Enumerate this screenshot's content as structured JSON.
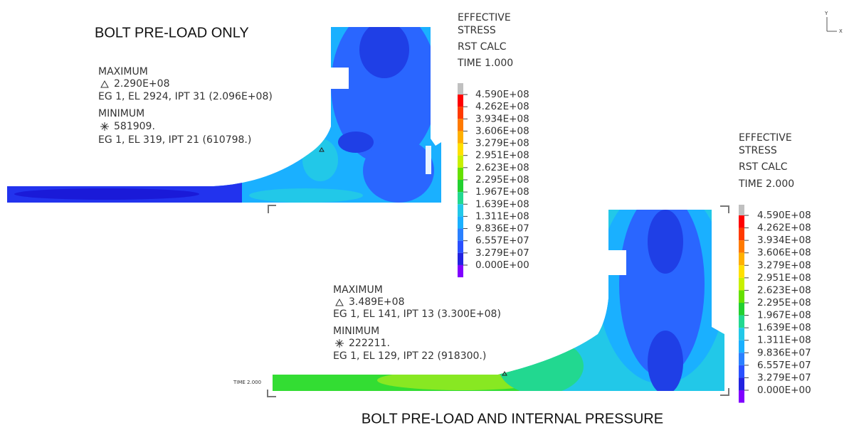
{
  "axis_triad": {
    "y": "Y",
    "x": "X"
  },
  "panels": [
    {
      "title": "BOLT PRE-LOAD ONLY",
      "result": [
        "EFFECTIVE",
        "STRESS",
        "RST CALC",
        "TIME 1.000"
      ],
      "maximum": {
        "label": "MAXIMUM",
        "value": "2.290E+08",
        "location": "EG 1, EL 2924, IPT 31 (2.096E+08)"
      },
      "minimum": {
        "label": "MINIMUM",
        "value": "581909.",
        "location": "EG 1, EL 319, IPT 21 (610798.)"
      },
      "legend": [
        "4.590E+08",
        "4.262E+08",
        "3.934E+08",
        "3.606E+08",
        "3.279E+08",
        "2.951E+08",
        "2.623E+08",
        "2.295E+08",
        "1.967E+08",
        "1.639E+08",
        "1.311E+08",
        "9.836E+07",
        "6.557E+07",
        "3.279E+07",
        "0.000E+00"
      ]
    },
    {
      "title": "BOLT PRE-LOAD AND INTERNAL PRESSURE",
      "time_label": "TIME 2.000",
      "result": [
        "EFFECTIVE",
        "STRESS",
        "RST CALC",
        "TIME 2.000"
      ],
      "maximum": {
        "label": "MAXIMUM",
        "value": "3.489E+08",
        "location": "EG 1, EL 141, IPT 13 (3.300E+08)"
      },
      "minimum": {
        "label": "MINIMUM",
        "value": "222211.",
        "location": "EG 1, EL 129, IPT 22 (918300.)"
      },
      "legend": [
        "4.590E+08",
        "4.262E+08",
        "3.934E+08",
        "3.606E+08",
        "3.279E+08",
        "2.951E+08",
        "2.623E+08",
        "2.295E+08",
        "1.967E+08",
        "1.639E+08",
        "1.311E+08",
        "9.836E+07",
        "6.557E+07",
        "3.279E+07",
        "0.000E+00"
      ]
    }
  ]
}
